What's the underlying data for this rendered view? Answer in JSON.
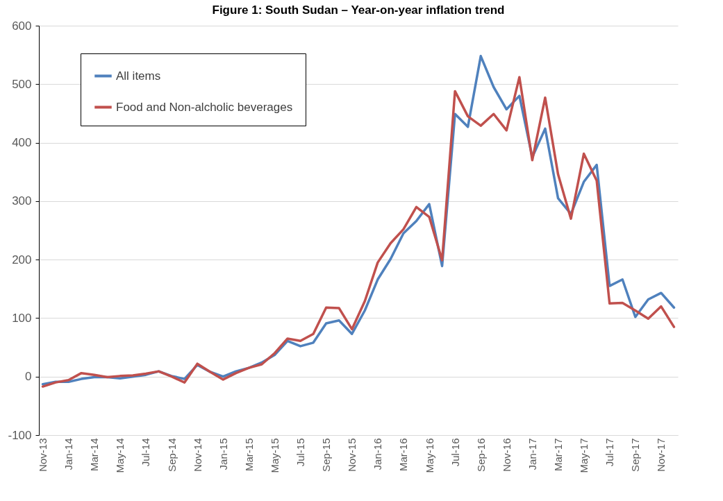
{
  "chart_data": {
    "type": "line",
    "title": "Figure 1: South Sudan – Year-on-year inflation trend",
    "categories": [
      "Nov-13",
      null,
      "Jan-14",
      null,
      "Mar-14",
      null,
      "May-14",
      null,
      "Jul-14",
      null,
      "Sep-14",
      null,
      "Nov-14",
      null,
      "Jan-15",
      null,
      "Mar-15",
      null,
      "May-15",
      null,
      "Jul-15",
      null,
      "Sep-15",
      null,
      "Nov-15",
      null,
      "Jan-16",
      null,
      "Mar-16",
      null,
      "May-16",
      null,
      "Jul-16",
      null,
      "Sep-16",
      null,
      "Nov-16",
      null,
      "Jan-17",
      null,
      "Mar-17",
      null,
      "May-17",
      null,
      "Jul-17",
      null,
      "Sep-17",
      null,
      "Nov-17",
      null
    ],
    "series": [
      {
        "name": "All items",
        "color": "#4f81bd",
        "values": [
          -13,
          -9,
          -9,
          -4,
          -1,
          -1,
          -3,
          0,
          3,
          9,
          1,
          -4,
          20,
          8,
          0,
          9,
          15,
          24,
          37,
          61,
          52,
          58,
          91,
          96,
          73,
          113,
          166,
          201,
          245,
          266,
          295,
          189,
          449,
          427,
          548,
          495,
          457,
          480,
          375,
          424,
          305,
          278,
          333,
          362,
          155,
          166,
          102,
          132,
          143,
          118
        ]
      },
      {
        "name": "Food and Non-alcholic beverages",
        "color": "#c0504d",
        "values": [
          -17,
          -10,
          -6,
          6,
          3,
          -1,
          1,
          2,
          5,
          9,
          0,
          -10,
          22,
          8,
          -5,
          6,
          15,
          21,
          40,
          65,
          61,
          73,
          118,
          117,
          81,
          129,
          195,
          228,
          252,
          290,
          273,
          199,
          488,
          445,
          429,
          449,
          421,
          512,
          370,
          477,
          346,
          270,
          381,
          335,
          125,
          126,
          113,
          99,
          120,
          85
        ]
      }
    ],
    "ylim": [
      -100,
      600
    ],
    "yticks": [
      -100,
      0,
      100,
      200,
      300,
      400,
      500,
      600
    ],
    "grid": "y",
    "legend": "top left"
  }
}
